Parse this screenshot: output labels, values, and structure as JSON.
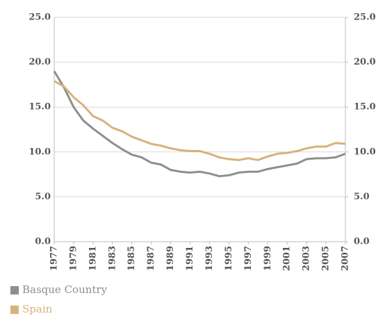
{
  "chart_data": {
    "type": "line",
    "x": [
      1977,
      1978,
      1979,
      1980,
      1981,
      1982,
      1983,
      1984,
      1985,
      1986,
      1987,
      1988,
      1989,
      1990,
      1991,
      1992,
      1993,
      1994,
      1995,
      1996,
      1997,
      1998,
      1999,
      2000,
      2001,
      2002,
      2003,
      2004,
      2005,
      2006,
      2007
    ],
    "xlim": [
      1977,
      2007
    ],
    "xticks": [
      1977,
      1979,
      1981,
      1983,
      1985,
      1987,
      1989,
      1991,
      1993,
      1995,
      1997,
      1999,
      2001,
      2003,
      2005,
      2007
    ],
    "ylim": [
      0,
      25
    ],
    "yticks": [
      {
        "value": 0,
        "label": "0.0"
      },
      {
        "value": 5,
        "label": "5.0"
      },
      {
        "value": 10,
        "label": "10.0"
      },
      {
        "value": 15,
        "label": "15.0"
      },
      {
        "value": 20,
        "label": "20.0"
      },
      {
        "value": 25,
        "label": "25.0"
      }
    ],
    "y2lim": [
      0,
      25
    ],
    "y2ticks": [
      {
        "value": 0,
        "label": "0.0"
      },
      {
        "value": 5,
        "label": "5.0"
      },
      {
        "value": 10,
        "label": "10.0"
      },
      {
        "value": 15,
        "label": "15.0"
      },
      {
        "value": 20,
        "label": "20.0"
      },
      {
        "value": 25,
        "label": "25.0"
      }
    ],
    "grid": true,
    "series": [
      {
        "name": "Basque Country",
        "color": "#8e8e8e",
        "values": [
          19.0,
          17.2,
          15.0,
          13.5,
          12.6,
          11.8,
          11.0,
          10.3,
          9.7,
          9.4,
          8.8,
          8.6,
          8.0,
          7.8,
          7.7,
          7.8,
          7.6,
          7.3,
          7.4,
          7.7,
          7.8,
          7.8,
          8.1,
          8.3,
          8.5,
          8.7,
          9.2,
          9.3,
          9.3,
          9.4,
          9.8
        ]
      },
      {
        "name": "Spain",
        "color": "#d6b27c",
        "values": [
          17.9,
          17.3,
          16.1,
          15.2,
          14.0,
          13.5,
          12.7,
          12.3,
          11.7,
          11.3,
          10.9,
          10.7,
          10.4,
          10.2,
          10.1,
          10.1,
          9.8,
          9.4,
          9.2,
          9.1,
          9.3,
          9.1,
          9.5,
          9.8,
          9.9,
          10.1,
          10.4,
          10.6,
          10.6,
          11.0,
          10.9
        ]
      }
    ]
  }
}
